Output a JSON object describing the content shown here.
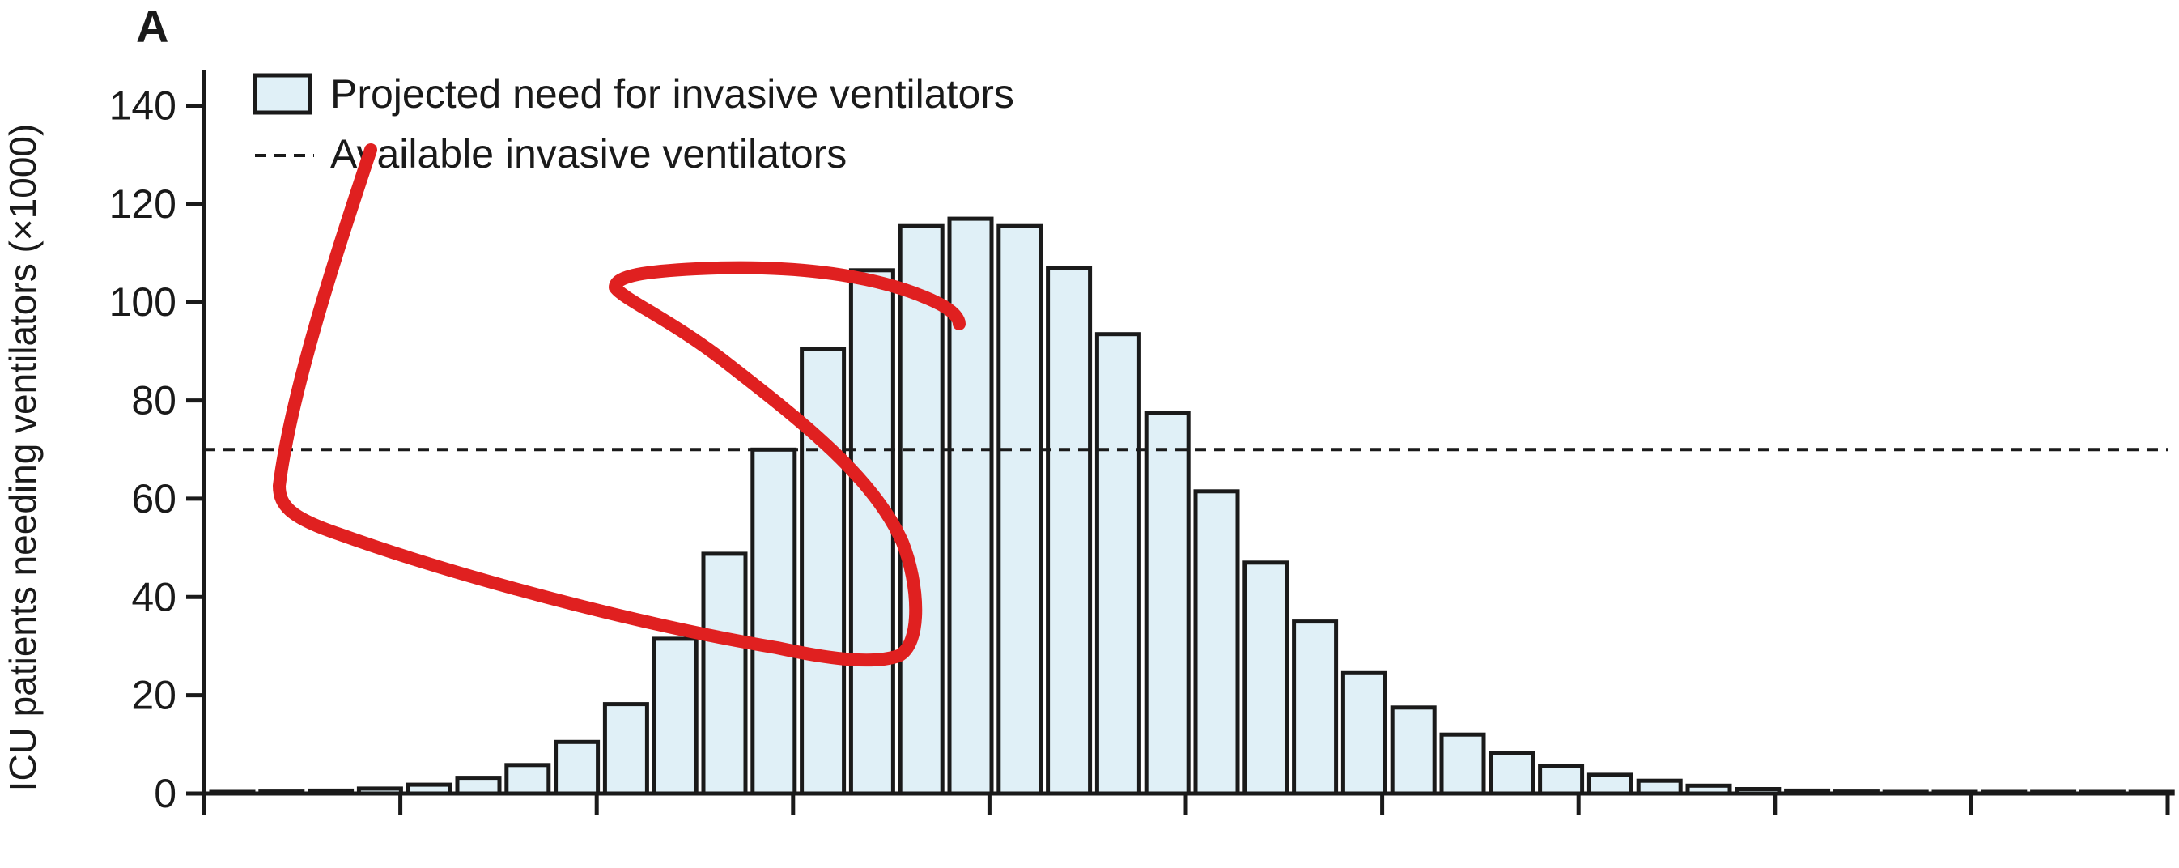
{
  "panel_label": "A",
  "chart_data": {
    "type": "bar",
    "ylabel": "ICU patients needing ventilators (×1000)",
    "xlabel": "",
    "ylim": [
      0,
      148
    ],
    "yticks": [
      0,
      20,
      40,
      60,
      80,
      100,
      120,
      140
    ],
    "x_major_ticks": 11,
    "grid": false,
    "legend_position": "top-left",
    "series": [
      {
        "name": "Projected need for invasive ventilators",
        "color": "#e0f0f7",
        "values": [
          0.3,
          0.4,
          0.6,
          1,
          1.8,
          3.2,
          5.8,
          10.5,
          18.2,
          31.5,
          48.8,
          70,
          90.5,
          106.5,
          115.5,
          117,
          115.5,
          107,
          93.5,
          77.5,
          61.5,
          47,
          35,
          24.5,
          17.5,
          12,
          8.2,
          5.6,
          3.8,
          2.6,
          1.6,
          0.9,
          0.6,
          0.4,
          0.3,
          0.2,
          0.2,
          0.1,
          0.1,
          0.1
        ]
      }
    ],
    "reference_lines": [
      {
        "name": "Available invasive ventilators",
        "y": 70,
        "style": "dashed"
      }
    ]
  }
}
